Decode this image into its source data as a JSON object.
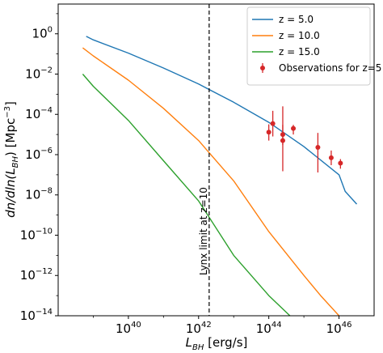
{
  "chart_data": {
    "type": "line",
    "x_scale": "log",
    "y_scale": "log",
    "xlim": [
      1e+38,
      1e+47
    ],
    "ylim": [
      1e-14,
      30
    ],
    "xlabel": {
      "main": "L",
      "sub": "BH",
      "rest": " [erg/s]"
    },
    "ylabel": {
      "a": "dn/dln(L",
      "sub": "BH",
      "b": ") [Mpc",
      "sup": "−3",
      "c": "]"
    },
    "x_ticks": [
      {
        "value": 1e+40,
        "base": "10",
        "exp": "40"
      },
      {
        "value": 1e+42,
        "base": "10",
        "exp": "42"
      },
      {
        "value": 1e+44,
        "base": "10",
        "exp": "44"
      },
      {
        "value": 1e+46,
        "base": "10",
        "exp": "46"
      }
    ],
    "y_ticks": [
      {
        "value": 1,
        "base": "10",
        "exp": "0"
      },
      {
        "value": 0.01,
        "base": "10",
        "exp": "−2"
      },
      {
        "value": 0.0001,
        "base": "10",
        "exp": "−4"
      },
      {
        "value": 1e-06,
        "base": "10",
        "exp": "−6"
      },
      {
        "value": 1e-08,
        "base": "10",
        "exp": "−8"
      },
      {
        "value": 1e-10,
        "base": "10",
        "exp": "−10"
      },
      {
        "value": 1e-12,
        "base": "10",
        "exp": "−12"
      },
      {
        "value": 1e-14,
        "base": "10",
        "exp": "−14"
      }
    ],
    "series": [
      {
        "name": "z = 5.0",
        "color": "#1f77b4",
        "x": [
          6.3e+38,
          1e+39,
          1e+40,
          1e+41,
          1e+42,
          1e+43,
          1e+44,
          1e+45,
          1e+46,
          1e+46,
          1e+46,
          1.5e+46,
          3.2e+46
        ],
        "y": [
          0.75,
          0.5,
          0.11,
          0.02,
          0.0032,
          0.0004,
          4e-05,
          2.5e-06,
          1e-07,
          1e-07,
          1e-07,
          1.5e-08,
          3.5e-09
        ],
        "x_clean": [
          6.3e+38,
          1e+39,
          1e+40,
          1e+41,
          1e+42,
          1e+43,
          1e+44,
          1e+45,
          1e+46,
          1.5e+46,
          3.2e+46
        ],
        "y_clean": [
          0.75,
          0.5,
          0.11,
          0.02,
          0.0032,
          0.0004,
          4e-05,
          2.5e-06,
          1e-07,
          1.5e-08,
          3.5e-09
        ]
      },
      {
        "name": "z = 10.0",
        "color": "#ff7f0e",
        "x_clean": [
          5e+38,
          1e+39,
          1e+40,
          1e+41,
          1e+42,
          1e+43,
          1e+44,
          1e+45,
          3e+45,
          1e+46
        ],
        "y_clean": [
          0.2,
          0.08,
          0.005,
          0.0002,
          5e-06,
          5e-08,
          1.5e-10,
          1e-12,
          1e-13,
          1e-14
        ]
      },
      {
        "name": "z = 15.0",
        "color": "#2ca02c",
        "x_clean": [
          5e+38,
          1e+39,
          1e+40,
          1e+41,
          1e+42,
          1e+43,
          1e+44,
          4e+44
        ],
        "y_clean": [
          0.01,
          0.0025,
          5e-05,
          5e-07,
          5e-09,
          1e-11,
          1e-13,
          1e-14
        ]
      }
    ],
    "observations": {
      "name": "Observations for z=5",
      "color": "#d62728",
      "points": [
        {
          "x": 1e+44,
          "y": 1.3e-05,
          "ylo": 5e-06,
          "yhi": 3.2e-05
        },
        {
          "x": 1.3e+44,
          "y": 3.5e-05,
          "ylo": 8e-06,
          "yhi": 0.00015
        },
        {
          "x": 2.5e+44,
          "y": 1e-05,
          "ylo": 3e-06,
          "yhi": 3e-05
        },
        {
          "x": 2.5e+44,
          "y": 5e-06,
          "ylo": 1.5e-07,
          "yhi": 0.00025
        },
        {
          "x": 5e+44,
          "y": 2e-05,
          "ylo": 1e-05,
          "yhi": 3e-05
        },
        {
          "x": 2.5e+45,
          "y": 2.3e-06,
          "ylo": 1.3e-07,
          "yhi": 1.2e-05
        },
        {
          "x": 6e+45,
          "y": 7e-07,
          "ylo": 3e-07,
          "yhi": 1.6e-06
        },
        {
          "x": 1.1e+46,
          "y": 3.8e-07,
          "ylo": 2e-07,
          "yhi": 6e-07
        }
      ]
    },
    "vline": {
      "x": 2e+42,
      "label": "Lynx limit at z=10"
    },
    "legend_position": "top-right",
    "grid": false
  }
}
